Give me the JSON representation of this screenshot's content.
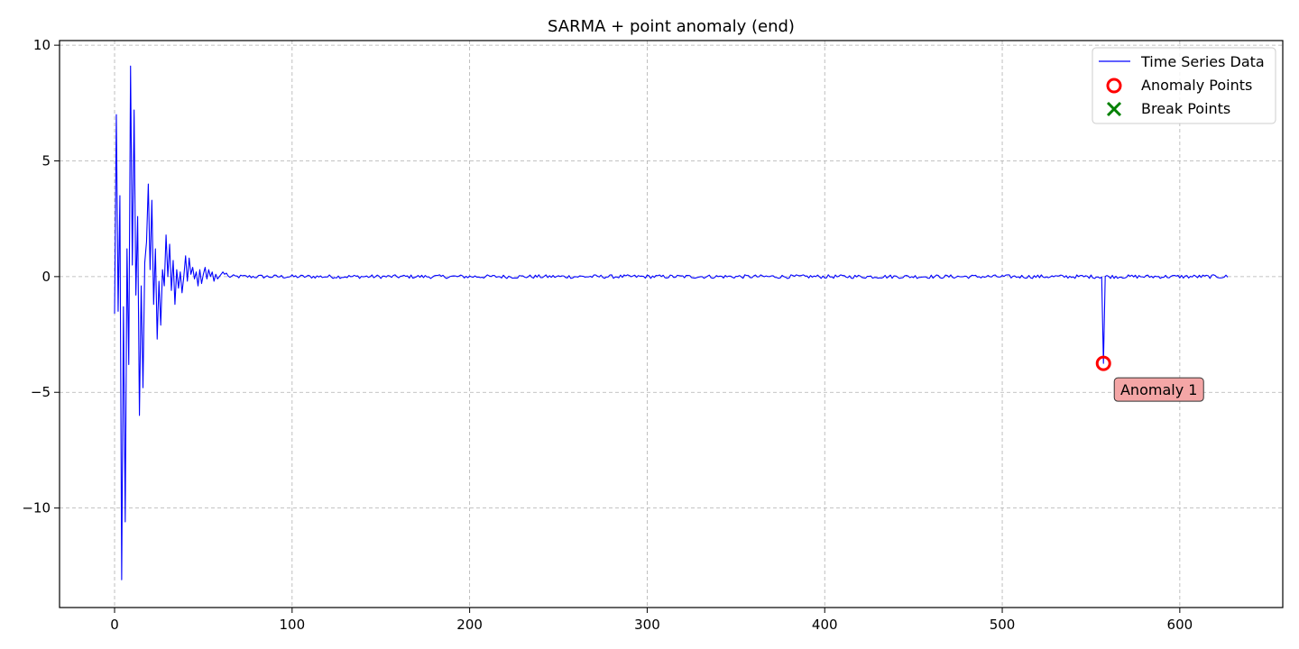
{
  "chart_data": {
    "type": "line",
    "title": "SARMA + point anomaly (end)",
    "xlabel": "",
    "ylabel": "",
    "xlim": [
      -31,
      658
    ],
    "ylim": [
      -14.3,
      10.2
    ],
    "x_ticks": [
      0,
      100,
      200,
      300,
      400,
      500,
      600
    ],
    "x_tick_labels": [
      "0",
      "100",
      "200",
      "300",
      "400",
      "500",
      "600"
    ],
    "y_ticks": [
      10,
      5,
      0,
      -5,
      -10
    ],
    "y_tick_labels": [
      "10",
      "5",
      "0",
      "−5",
      "−10"
    ],
    "grid": true,
    "legend_position": "top-right",
    "legend": [
      {
        "label": "Time Series Data",
        "marker": "line",
        "color": "#0000ff"
      },
      {
        "label": "Anomaly Points",
        "marker": "circle",
        "color": "#ff0000"
      },
      {
        "label": "Break Points",
        "marker": "x",
        "color": "#008000"
      }
    ],
    "series": [
      {
        "name": "Time Series Data",
        "color": "#0000ff",
        "x_start": 0,
        "length": 628,
        "head_values": [
          -1.6,
          7.0,
          -1.5,
          3.5,
          -13.1,
          -1.3,
          -10.6,
          1.2,
          -3.8,
          9.1,
          0.5,
          7.2,
          -0.8,
          2.6,
          -6.0,
          -0.4,
          -4.8,
          0.6,
          1.5,
          4.0,
          0.3,
          3.3,
          -1.2,
          1.2,
          -2.7,
          -0.2,
          -2.1,
          0.3,
          -0.4,
          1.8,
          0.0,
          1.4,
          -0.6,
          0.7,
          -1.2,
          0.3,
          -0.5,
          0.2,
          -0.7,
          0.0,
          0.9,
          -0.2,
          0.8,
          0.1,
          0.4,
          -0.1,
          0.2,
          -0.4,
          0.3,
          -0.3,
          0.1,
          0.4,
          -0.1,
          0.3,
          0.0,
          0.2,
          -0.2,
          0.1,
          -0.1,
          0.0,
          0.1,
          0.2,
          0.1,
          0.15
        ],
        "baseline": 0.0,
        "noise_amplitude": 0.08
      }
    ],
    "anomaly_points": [
      {
        "x": 557,
        "y": -3.75,
        "label": "Anomaly 1"
      }
    ],
    "break_points": []
  }
}
